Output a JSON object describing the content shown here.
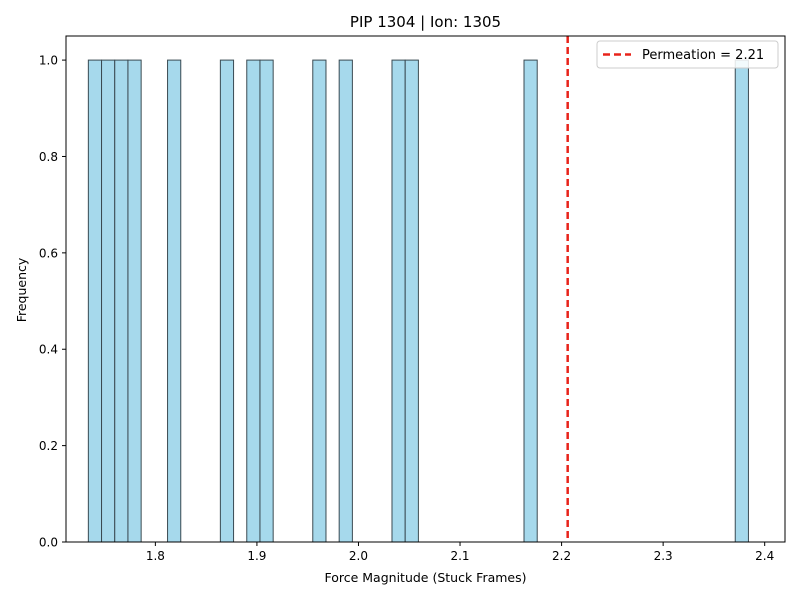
{
  "chart_data": {
    "type": "bar",
    "subtype": "histogram",
    "title": "PIP 1304 | Ion: 1305",
    "xlabel": "Force Magnitude (Stuck Frames)",
    "ylabel": "Frequency",
    "xlim": [
      1.712,
      2.42
    ],
    "ylim": [
      0,
      1.05
    ],
    "bin_width": 0.013,
    "bars": [
      {
        "x": 1.7405,
        "height": 1
      },
      {
        "x": 1.7535,
        "height": 1
      },
      {
        "x": 1.7665,
        "height": 1
      },
      {
        "x": 1.7795,
        "height": 1
      },
      {
        "x": 1.8185,
        "height": 1
      },
      {
        "x": 1.8705,
        "height": 1
      },
      {
        "x": 1.8965,
        "height": 1
      },
      {
        "x": 1.9095,
        "height": 1
      },
      {
        "x": 1.9615,
        "height": 1
      },
      {
        "x": 1.9875,
        "height": 1
      },
      {
        "x": 2.0395,
        "height": 1
      },
      {
        "x": 2.0525,
        "height": 1
      },
      {
        "x": 2.1695,
        "height": 1
      },
      {
        "x": 2.3775,
        "height": 1
      }
    ],
    "xticks": [
      "1.8",
      "1.9",
      "2.0",
      "2.1",
      "2.2",
      "2.3",
      "2.4"
    ],
    "xtick_values": [
      1.8,
      1.9,
      2.0,
      2.1,
      2.2,
      2.3,
      2.4
    ],
    "yticks": [
      "0.0",
      "0.2",
      "0.4",
      "0.6",
      "0.8",
      "1.0"
    ],
    "ytick_values": [
      0.0,
      0.2,
      0.4,
      0.6,
      0.8,
      1.0
    ],
    "reference_line": {
      "x": 2.206,
      "label": "Permeation = 2.21",
      "color": "#e8231a",
      "style": "dashed"
    },
    "bar_color": "#a6d9ec",
    "bar_edge_color": "#3a4a52",
    "legend": {
      "position": "top-right",
      "entries": [
        "Permeation = 2.21"
      ]
    },
    "grid": false
  }
}
